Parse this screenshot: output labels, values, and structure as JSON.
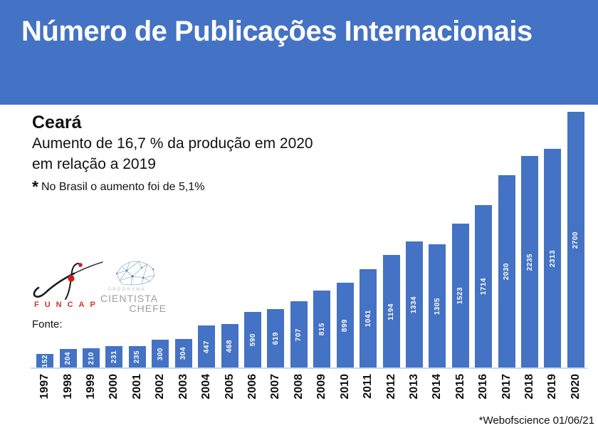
{
  "header": {
    "title": "Número de Publicações Internacionais",
    "bg_color": "#4472C4",
    "text_color": "#FFFFFF"
  },
  "subtitle": {
    "region": "Ceará",
    "line1": "Aumento de 16,7 % da produção em 2020",
    "line2": "em relação a 2019",
    "note_star": "*",
    "note": "No Brasil o aumento foi de 5,1%"
  },
  "logos": {
    "funcap": {
      "label": "FUNCAP",
      "letter_color": "#D0342C"
    },
    "cientista_chefe": {
      "program": "PROGRAMA",
      "line1": "CIENTISTA",
      "line2": "CHEFE"
    }
  },
  "source_label": "Fonte:",
  "footer": {
    "note": "*Webofscience 01/06/21"
  },
  "chart_data": {
    "type": "bar",
    "title": "Número de Publicações Internacionais",
    "xlabel": "",
    "ylabel": "",
    "categories": [
      "1997",
      "1998",
      "1999",
      "2000",
      "2001",
      "2002",
      "2003",
      "2004",
      "2005",
      "2006",
      "2007",
      "2008",
      "2009",
      "2010",
      "2011",
      "2012",
      "2013",
      "2014",
      "2015",
      "2016",
      "2017",
      "2018",
      "2019",
      "2020"
    ],
    "values": [
      152,
      204,
      210,
      231,
      235,
      300,
      304,
      447,
      468,
      590,
      619,
      707,
      815,
      899,
      1041,
      1194,
      1334,
      1305,
      1523,
      1714,
      2030,
      2235,
      2313,
      2700
    ],
    "ylim": [
      0,
      2700
    ],
    "grid": false,
    "legend": "none",
    "bar_color": "#4472C4",
    "value_label_color": "#FFFFFF",
    "value_labels_rotated": true,
    "axis_line_color": "#C9D6EA"
  }
}
